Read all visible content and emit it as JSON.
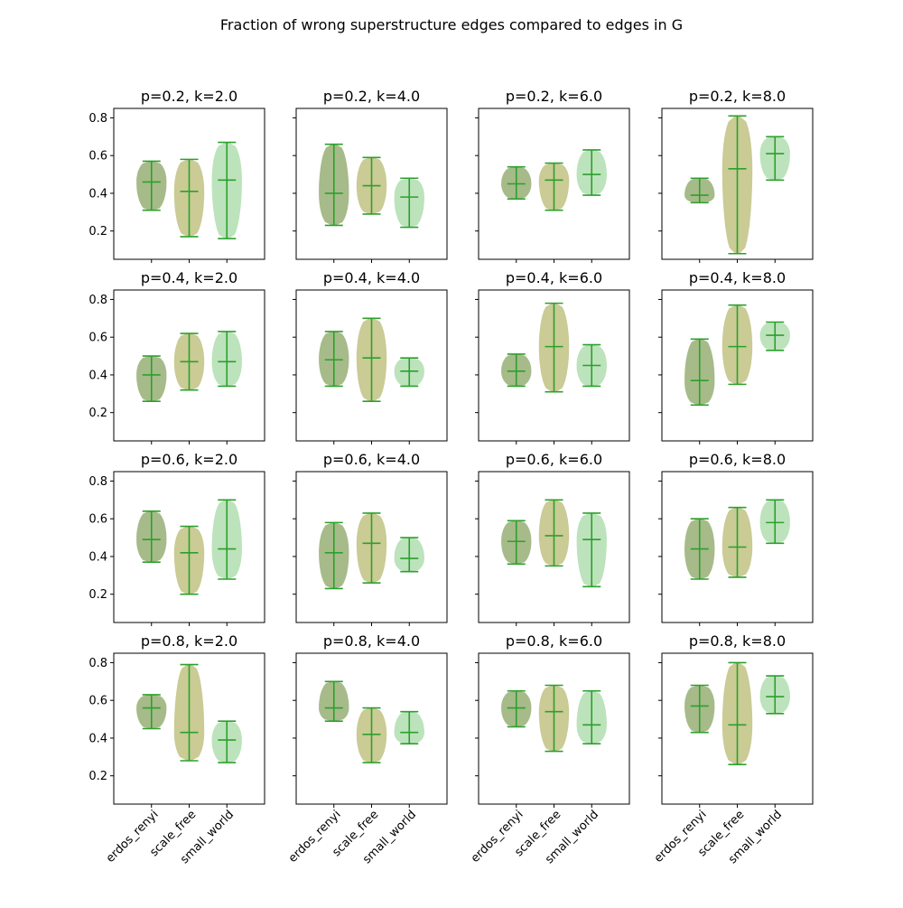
{
  "chart_data": {
    "type": "violin",
    "title": "Fraction of wrong superstructure edges compared to edges in G",
    "categories": [
      "erdos_renyi",
      "scale_free",
      "small_world"
    ],
    "colors": {
      "erdos_renyi": "#6b8e3a",
      "scale_free": "#a6a84e",
      "small_world": "#8fd18f",
      "lines": "#2ca02c"
    },
    "ylim": [
      0.05,
      0.85
    ],
    "yticks": [
      "0.2",
      "0.4",
      "0.6",
      "0.8"
    ],
    "grid": false,
    "panels": [
      {
        "title": "p=0.2, k=2.0",
        "stats": [
          {
            "min": 0.31,
            "mean": 0.46,
            "max": 0.57
          },
          {
            "min": 0.17,
            "mean": 0.41,
            "max": 0.58
          },
          {
            "min": 0.16,
            "mean": 0.47,
            "max": 0.67
          }
        ]
      },
      {
        "title": "p=0.2, k=4.0",
        "stats": [
          {
            "min": 0.23,
            "mean": 0.4,
            "max": 0.66
          },
          {
            "min": 0.29,
            "mean": 0.44,
            "max": 0.59
          },
          {
            "min": 0.22,
            "mean": 0.38,
            "max": 0.48
          }
        ]
      },
      {
        "title": "p=0.2, k=6.0",
        "stats": [
          {
            "min": 0.37,
            "mean": 0.45,
            "max": 0.54
          },
          {
            "min": 0.31,
            "mean": 0.47,
            "max": 0.56
          },
          {
            "min": 0.39,
            "mean": 0.5,
            "max": 0.63
          }
        ]
      },
      {
        "title": "p=0.2, k=8.0",
        "stats": [
          {
            "min": 0.35,
            "mean": 0.39,
            "max": 0.48
          },
          {
            "min": 0.08,
            "mean": 0.53,
            "max": 0.81
          },
          {
            "min": 0.47,
            "mean": 0.61,
            "max": 0.7
          }
        ]
      },
      {
        "title": "p=0.4, k=2.0",
        "stats": [
          {
            "min": 0.26,
            "mean": 0.4,
            "max": 0.5
          },
          {
            "min": 0.32,
            "mean": 0.47,
            "max": 0.62
          },
          {
            "min": 0.34,
            "mean": 0.47,
            "max": 0.63
          }
        ]
      },
      {
        "title": "p=0.4, k=4.0",
        "stats": [
          {
            "min": 0.34,
            "mean": 0.48,
            "max": 0.63
          },
          {
            "min": 0.26,
            "mean": 0.49,
            "max": 0.7
          },
          {
            "min": 0.34,
            "mean": 0.42,
            "max": 0.49
          }
        ]
      },
      {
        "title": "p=0.4, k=6.0",
        "stats": [
          {
            "min": 0.34,
            "mean": 0.42,
            "max": 0.51
          },
          {
            "min": 0.31,
            "mean": 0.55,
            "max": 0.78
          },
          {
            "min": 0.34,
            "mean": 0.45,
            "max": 0.56
          }
        ]
      },
      {
        "title": "p=0.4, k=8.0",
        "stats": [
          {
            "min": 0.24,
            "mean": 0.37,
            "max": 0.59
          },
          {
            "min": 0.35,
            "mean": 0.55,
            "max": 0.77
          },
          {
            "min": 0.53,
            "mean": 0.61,
            "max": 0.68
          }
        ]
      },
      {
        "title": "p=0.6, k=2.0",
        "stats": [
          {
            "min": 0.37,
            "mean": 0.49,
            "max": 0.64
          },
          {
            "min": 0.2,
            "mean": 0.42,
            "max": 0.56
          },
          {
            "min": 0.28,
            "mean": 0.44,
            "max": 0.7
          }
        ]
      },
      {
        "title": "p=0.6, k=4.0",
        "stats": [
          {
            "min": 0.23,
            "mean": 0.42,
            "max": 0.58
          },
          {
            "min": 0.26,
            "mean": 0.47,
            "max": 0.63
          },
          {
            "min": 0.32,
            "mean": 0.39,
            "max": 0.5
          }
        ]
      },
      {
        "title": "p=0.6, k=6.0",
        "stats": [
          {
            "min": 0.36,
            "mean": 0.48,
            "max": 0.59
          },
          {
            "min": 0.35,
            "mean": 0.51,
            "max": 0.7
          },
          {
            "min": 0.24,
            "mean": 0.49,
            "max": 0.63
          }
        ]
      },
      {
        "title": "p=0.6, k=8.0",
        "stats": [
          {
            "min": 0.28,
            "mean": 0.44,
            "max": 0.6
          },
          {
            "min": 0.29,
            "mean": 0.45,
            "max": 0.66
          },
          {
            "min": 0.47,
            "mean": 0.58,
            "max": 0.7
          }
        ]
      },
      {
        "title": "p=0.8, k=2.0",
        "stats": [
          {
            "min": 0.45,
            "mean": 0.56,
            "max": 0.63
          },
          {
            "min": 0.28,
            "mean": 0.43,
            "max": 0.79
          },
          {
            "min": 0.27,
            "mean": 0.39,
            "max": 0.49
          }
        ]
      },
      {
        "title": "p=0.8, k=4.0",
        "stats": [
          {
            "min": 0.49,
            "mean": 0.56,
            "max": 0.7
          },
          {
            "min": 0.27,
            "mean": 0.42,
            "max": 0.56
          },
          {
            "min": 0.37,
            "mean": 0.43,
            "max": 0.54
          }
        ]
      },
      {
        "title": "p=0.8, k=6.0",
        "stats": [
          {
            "min": 0.46,
            "mean": 0.56,
            "max": 0.65
          },
          {
            "min": 0.33,
            "mean": 0.54,
            "max": 0.68
          },
          {
            "min": 0.37,
            "mean": 0.47,
            "max": 0.65
          }
        ]
      },
      {
        "title": "p=0.8, k=8.0",
        "stats": [
          {
            "min": 0.43,
            "mean": 0.57,
            "max": 0.68
          },
          {
            "min": 0.26,
            "mean": 0.47,
            "max": 0.8
          },
          {
            "min": 0.53,
            "mean": 0.62,
            "max": 0.73
          }
        ]
      }
    ]
  }
}
